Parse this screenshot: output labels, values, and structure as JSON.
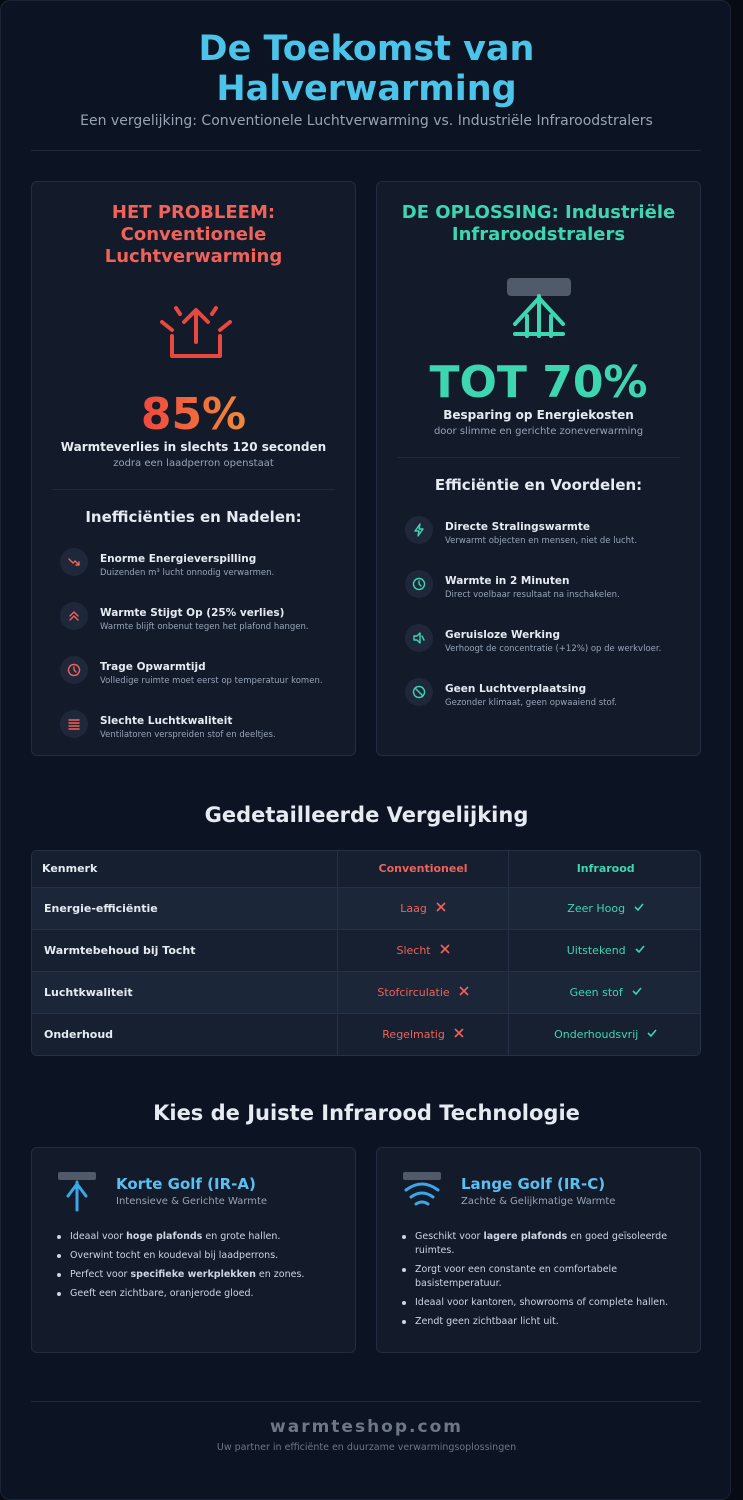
{
  "header": {
    "title": "De Toekomst van Halverwarming",
    "subtitle": "Een vergelijking: Conventionele Luchtverwarming vs. Industriële Infraroodstralers"
  },
  "problem": {
    "heading": "HET PROBLEEM: Conventionele Luchtverwarming",
    "stat": "85%",
    "stat_label": "Warmteverlies in slechts 120 seconden",
    "stat_note": "zodra een laadperron openstaat",
    "list_title": "Inefficiënties en Nadelen:",
    "items": [
      {
        "title": "Enorme Energieverspilling",
        "desc": "Duizenden m³ lucht onnodig verwarmen."
      },
      {
        "title": "Warmte Stijgt Op (25% verlies)",
        "desc": "Warmte blijft onbenut tegen het plafond hangen."
      },
      {
        "title": "Trage Opwarmtijd",
        "desc": "Volledige ruimte moet eerst op temperatuur komen."
      },
      {
        "title": "Slechte Luchtkwaliteit",
        "desc": "Ventilatoren verspreiden stof en deeltjes."
      }
    ]
  },
  "solution": {
    "heading": "DE OPLOSSING: Industriële Infraroodstralers",
    "stat": "TOT 70%",
    "stat_label": "Besparing op Energiekosten",
    "stat_note": "door slimme en gerichte zoneverwarming",
    "list_title": "Efficiëntie en Voordelen:",
    "items": [
      {
        "title": "Directe Stralingswarmte",
        "desc": "Verwarmt objecten en mensen, niet de lucht."
      },
      {
        "title": "Warmte in 2 Minuten",
        "desc": "Direct voelbaar resultaat na inschakelen."
      },
      {
        "title": "Geruisloze Werking",
        "desc": "Verhoogt de concentratie (+12%) op de werkvloer."
      },
      {
        "title": "Geen Luchtverplaatsing",
        "desc": "Gezonder klimaat, geen opwaaiend stof."
      }
    ]
  },
  "comparison": {
    "title": "Gedetailleerde Vergelijking",
    "headers": [
      "Kenmerk",
      "Conventioneel",
      "Infrarood"
    ],
    "rows": [
      [
        "Energie-efficiëntie",
        "Laag",
        "Zeer Hoog"
      ],
      [
        "Warmtebehoud bij Tocht",
        "Slecht",
        "Uitstekend"
      ],
      [
        "Luchtkwaliteit",
        "Stofcirculatie",
        "Geen stof"
      ],
      [
        "Onderhoud",
        "Regelmatig",
        "Onderhoudsvrij"
      ]
    ]
  },
  "technology": {
    "title": "Kies de Juiste Infrarood Technologie",
    "cards": [
      {
        "title": "Korte Golf (IR-A)",
        "subtitle": "Intensieve & Gerichte Warmte",
        "bullets": [
          [
            "Ideaal voor ",
            "hoge plafonds",
            " en grote hallen."
          ],
          [
            "Overwint tocht en koudeval bij laadperrons."
          ],
          [
            "Perfect voor ",
            "specifieke werkplekken",
            " en zones."
          ],
          [
            "Geeft een zichtbare, oranjerode gloed."
          ]
        ]
      },
      {
        "title": "Lange Golf (IR-C)",
        "subtitle": "Zachte & Gelijkmatige Warmte",
        "bullets": [
          [
            "Geschikt voor ",
            "lagere plafonds",
            " en goed geïsoleerde ruimtes."
          ],
          [
            "Zorgt voor een constante en comfortabele basistemperatuur."
          ],
          [
            "Ideaal voor kantoren, showrooms of complete hallen."
          ],
          [
            "Zendt geen zichtbaar licht uit."
          ]
        ]
      }
    ]
  },
  "footer": {
    "brand": "warmteshop.com",
    "tagline": "Uw partner in efficiënte en duurzame verwarmingsoplossingen"
  }
}
